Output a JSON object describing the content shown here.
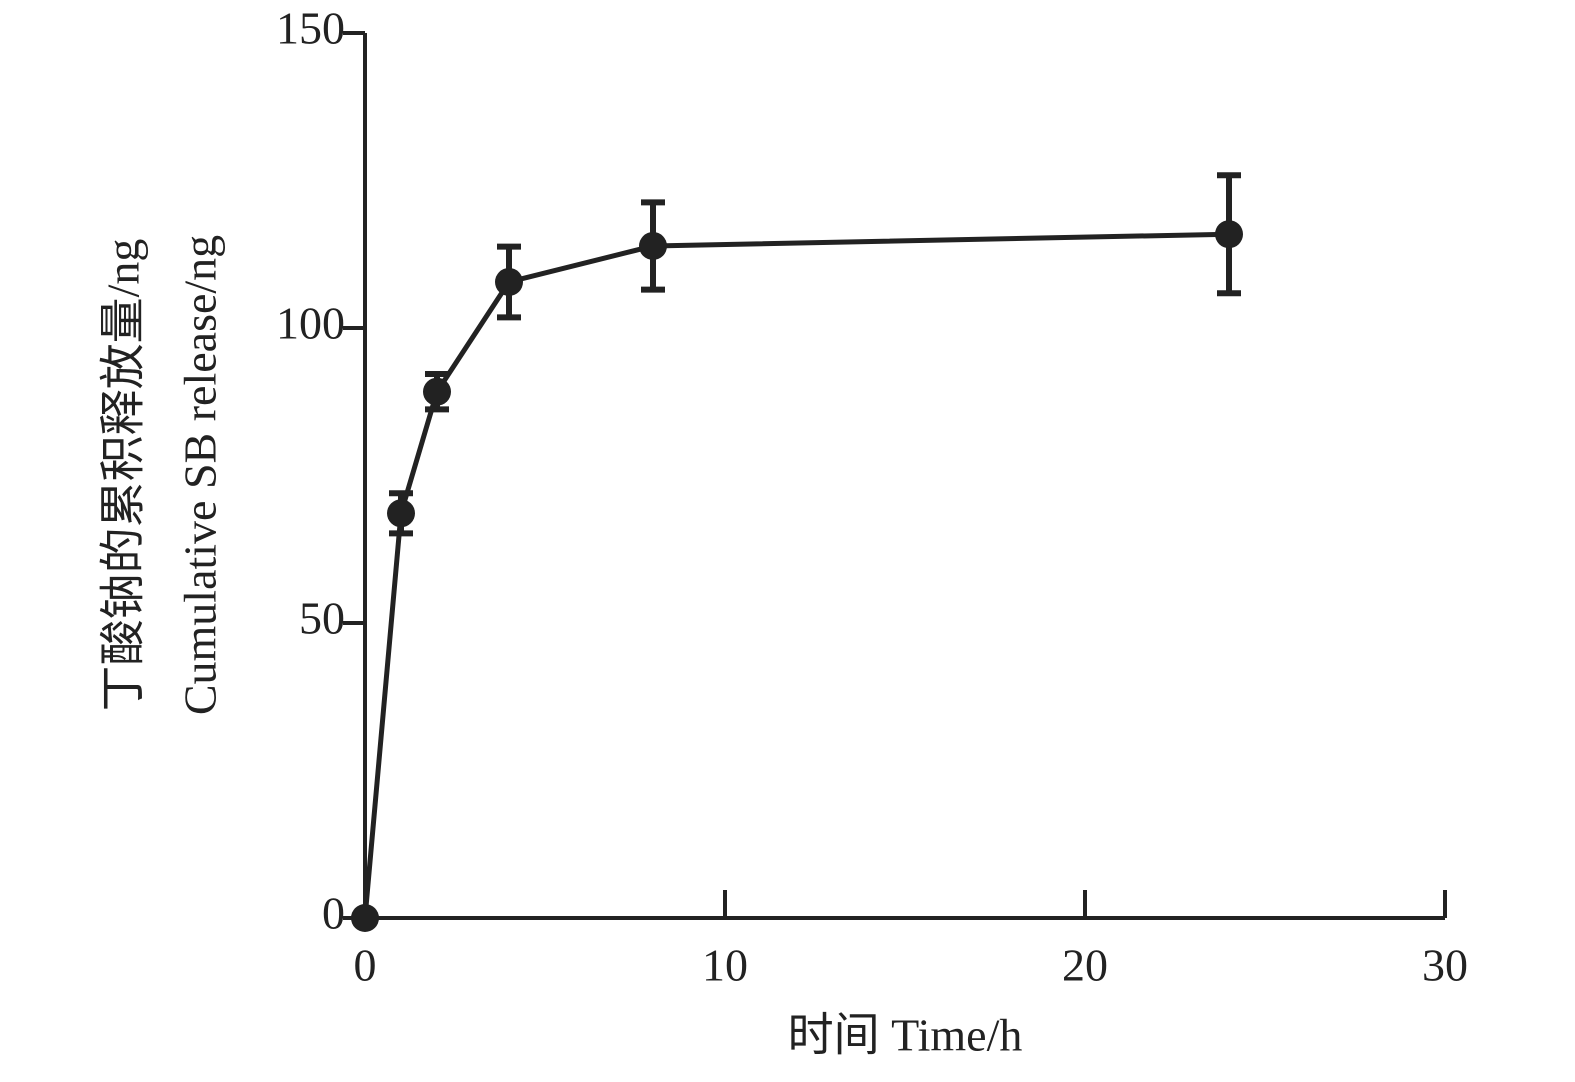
{
  "chart_data": {
    "type": "line",
    "x_label": "时间 Time/h",
    "y_label": [
      "丁酸钠的累积释放量/ng",
      "Cumulative SB release/ng"
    ],
    "x": [
      0,
      1,
      2,
      4,
      8,
      24
    ],
    "series": [
      {
        "name": "SB",
        "color": "#222222",
        "values": [
          0,
          68.6,
          89.2,
          107.8,
          113.9,
          115.9
        ],
        "errors": [
          0,
          3.4,
          3,
          6,
          7.4,
          10
        ]
      }
    ],
    "xlim": [
      0,
      30
    ],
    "xticks": [
      0,
      10,
      20,
      30
    ],
    "ylim": [
      0,
      150
    ],
    "yticks": [
      0,
      50,
      100,
      150
    ],
    "grid": false
  }
}
